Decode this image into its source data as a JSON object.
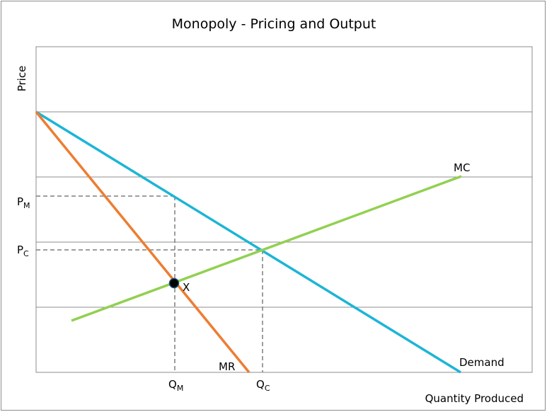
{
  "title": "Monopoly - Pricing and Output",
  "axes": {
    "y_label": "Price",
    "x_label": "Quantity Produced"
  },
  "curves": {
    "demand": "Demand",
    "mr": "MR",
    "mc": "MC"
  },
  "point": "X",
  "markers": {
    "pm": {
      "letter": "P",
      "sub": "M"
    },
    "pc": {
      "letter": "P",
      "sub": "C"
    },
    "qm": {
      "letter": "Q",
      "sub": "M"
    },
    "qc": {
      "letter": "Q",
      "sub": "C"
    }
  }
}
